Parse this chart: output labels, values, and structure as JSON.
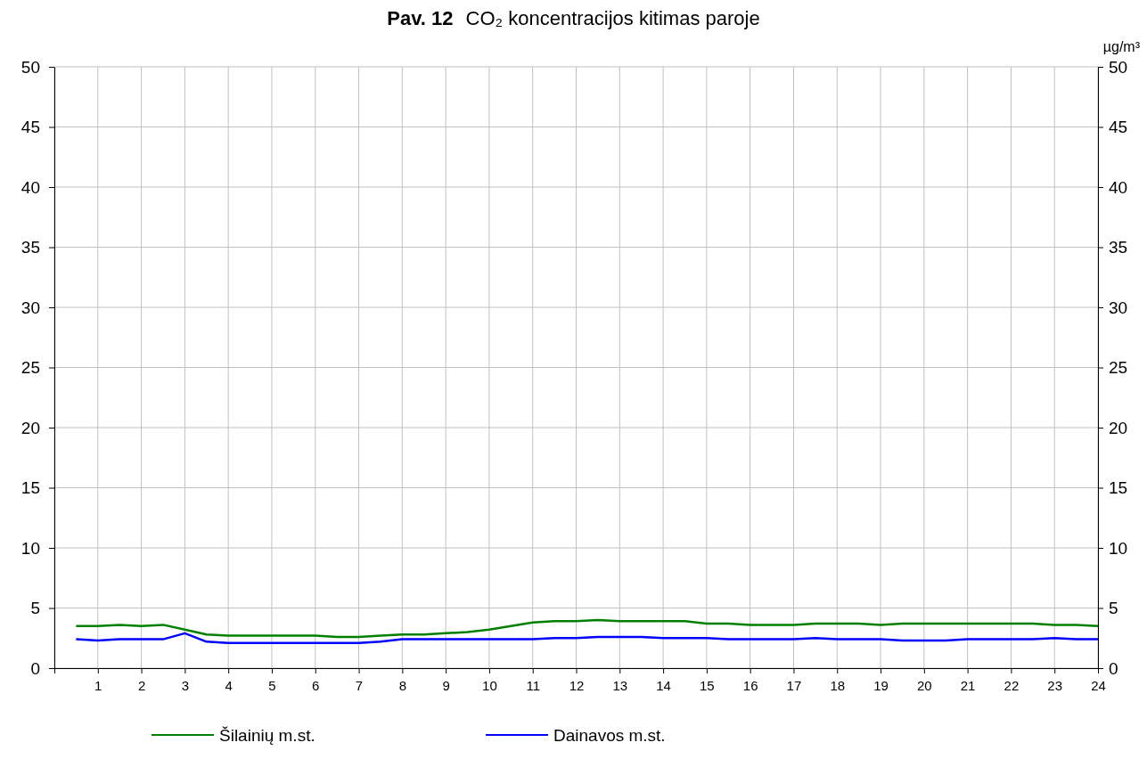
{
  "chart_data": {
    "type": "line",
    "title": "Pav. 12",
    "subtitle": "CO₂ koncentracijos kitimas paroje",
    "y2label": "µg/m³",
    "x": [
      0.5,
      1,
      1.5,
      2,
      2.5,
      3,
      3.5,
      4,
      4.5,
      5,
      5.5,
      6,
      6.5,
      7,
      7.5,
      8,
      8.5,
      9,
      9.5,
      10,
      10.5,
      11,
      11.5,
      12,
      12.5,
      13,
      13.5,
      14,
      14.5,
      15,
      15.5,
      16,
      16.5,
      17,
      17.5,
      18,
      18.5,
      19,
      19.5,
      20,
      20.5,
      21,
      21.5,
      22,
      22.5,
      23,
      23.5,
      24
    ],
    "series": [
      {
        "name": "Šilainių m.st.",
        "color": "#008000",
        "values": [
          3.5,
          3.5,
          3.6,
          3.5,
          3.6,
          3.2,
          2.8,
          2.7,
          2.7,
          2.7,
          2.7,
          2.7,
          2.6,
          2.6,
          2.7,
          2.8,
          2.8,
          2.9,
          3.0,
          3.2,
          3.5,
          3.8,
          3.9,
          3.9,
          4.0,
          3.9,
          3.9,
          3.9,
          3.9,
          3.7,
          3.7,
          3.6,
          3.6,
          3.6,
          3.7,
          3.7,
          3.7,
          3.6,
          3.7,
          3.7,
          3.7,
          3.7,
          3.7,
          3.7,
          3.7,
          3.6,
          3.6,
          3.5
        ]
      },
      {
        "name": "Dainavos m.st.",
        "color": "#0000ff",
        "values": [
          2.4,
          2.3,
          2.4,
          2.4,
          2.4,
          2.9,
          2.2,
          2.1,
          2.1,
          2.1,
          2.1,
          2.1,
          2.1,
          2.1,
          2.2,
          2.4,
          2.4,
          2.4,
          2.4,
          2.4,
          2.4,
          2.4,
          2.5,
          2.5,
          2.6,
          2.6,
          2.6,
          2.5,
          2.5,
          2.5,
          2.4,
          2.4,
          2.4,
          2.4,
          2.5,
          2.4,
          2.4,
          2.4,
          2.3,
          2.3,
          2.3,
          2.4,
          2.4,
          2.4,
          2.4,
          2.5,
          2.4,
          2.4
        ]
      }
    ],
    "xlim": [
      0,
      24
    ],
    "xticks": [
      {
        "value": 0,
        "label": null
      },
      1,
      2,
      3,
      4,
      5,
      6,
      7,
      8,
      9,
      10,
      11,
      12,
      13,
      14,
      15,
      16,
      17,
      18,
      19,
      20,
      21,
      22,
      23,
      24
    ],
    "ylim": [
      0,
      50
    ],
    "yticks": [
      0,
      5,
      10,
      15,
      20,
      25,
      30,
      35,
      40,
      45,
      50
    ],
    "y2lim": [
      0,
      50
    ],
    "y2ticks": [
      0,
      5,
      10,
      15,
      20,
      25,
      30,
      35,
      40,
      45,
      50
    ],
    "grid": true,
    "legend": "bottom",
    "marker": "none",
    "line_style": "solid"
  }
}
